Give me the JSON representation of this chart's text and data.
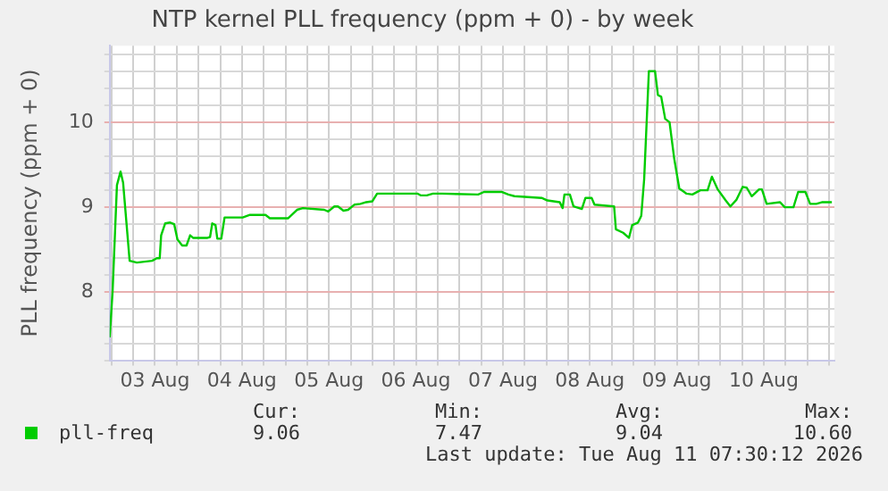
{
  "chart_data": {
    "type": "line",
    "title": "NTP kernel PLL frequency (ppm + 0) - by week",
    "ylabel": "PLL frequency (ppm + 0)",
    "x": [
      "2026-08-02T23:30",
      "2026-08-03T00:18",
      "2026-08-03T01:30",
      "2026-08-03T02:30",
      "2026-08-03T03:12",
      "2026-08-03T05:00",
      "2026-08-03T07:00",
      "2026-08-03T11:12",
      "2026-08-03T12:30",
      "2026-08-03T13:18",
      "2026-08-03T13:42",
      "2026-08-03T14:48",
      "2026-08-03T16:12",
      "2026-08-03T17:18",
      "2026-08-03T18:12",
      "2026-08-03T19:30",
      "2026-08-03T20:42",
      "2026-08-03T21:42",
      "2026-08-03T22:30",
      "2026-08-04T02:30",
      "2026-08-04T03:12",
      "2026-08-04T03:48",
      "2026-08-04T04:42",
      "2026-08-04T05:12",
      "2026-08-04T06:18",
      "2026-08-04T07:12",
      "2026-08-04T12:12",
      "2026-08-04T14:12",
      "2026-08-04T18:30",
      "2026-08-04T19:42",
      "2026-08-05T00:42",
      "2026-08-05T03:12",
      "2026-08-05T04:48",
      "2026-08-05T10:42",
      "2026-08-05T11:48",
      "2026-08-05T13:30",
      "2026-08-05T14:30",
      "2026-08-05T16:00",
      "2026-08-05T17:18",
      "2026-08-05T19:00",
      "2026-08-05T20:42",
      "2026-08-05T22:18",
      "2026-08-06T00:00",
      "2026-08-06T01:18",
      "2026-08-06T12:30",
      "2026-08-06T13:18",
      "2026-08-06T15:00",
      "2026-08-06T16:42",
      "2026-08-06T19:12",
      "2026-08-07T05:12",
      "2026-08-07T06:48",
      "2026-08-07T11:48",
      "2026-08-07T13:30",
      "2026-08-07T15:12",
      "2026-08-07T22:42",
      "2026-08-08T00:18",
      "2026-08-08T03:42",
      "2026-08-08T04:30",
      "2026-08-08T05:00",
      "2026-08-08T06:30",
      "2026-08-08T07:30",
      "2026-08-08T09:48",
      "2026-08-08T10:48",
      "2026-08-08T12:30",
      "2026-08-08T13:18",
      "2026-08-08T18:42",
      "2026-08-08T19:12",
      "2026-08-08T21:12",
      "2026-08-08T22:48",
      "2026-08-08T23:42",
      "2026-08-09T01:18",
      "2026-08-09T02:12",
      "2026-08-09T03:00",
      "2026-08-09T04:18",
      "2026-08-09T06:00",
      "2026-08-09T06:48",
      "2026-08-09T07:42",
      "2026-08-09T08:48",
      "2026-08-09T10:00",
      "2026-08-09T11:18",
      "2026-08-09T12:42",
      "2026-08-09T14:42",
      "2026-08-09T16:18",
      "2026-08-09T18:30",
      "2026-08-09T20:30",
      "2026-08-09T21:42",
      "2026-08-09T23:18",
      "2026-08-10T01:30",
      "2026-08-10T02:48",
      "2026-08-10T04:30",
      "2026-08-10T06:12",
      "2026-08-10T07:18",
      "2026-08-10T08:42",
      "2026-08-10T10:42",
      "2026-08-10T11:30",
      "2026-08-10T12:48",
      "2026-08-10T16:30",
      "2026-08-10T17:48",
      "2026-08-10T20:12",
      "2026-08-10T21:30",
      "2026-08-10T23:30",
      "2026-08-11T00:48",
      "2026-08-11T02:30",
      "2026-08-11T04:12",
      "2026-08-11T06:48"
    ],
    "series": [
      {
        "name": "pll-freq",
        "color": "#00cc00",
        "values": [
          7.47,
          8.01,
          9.26,
          9.42,
          9.29,
          8.37,
          8.35,
          8.37,
          8.4,
          8.4,
          8.67,
          8.81,
          8.82,
          8.8,
          8.62,
          8.55,
          8.55,
          8.67,
          8.64,
          8.64,
          8.65,
          8.81,
          8.79,
          8.63,
          8.63,
          8.88,
          8.88,
          8.91,
          8.91,
          8.87,
          8.87,
          8.97,
          8.99,
          8.97,
          8.95,
          9.01,
          9.01,
          8.96,
          8.97,
          9.03,
          9.04,
          9.06,
          9.07,
          9.16,
          9.16,
          9.14,
          9.14,
          9.16,
          9.16,
          9.15,
          9.18,
          9.18,
          9.15,
          9.13,
          9.11,
          9.08,
          9.06,
          8.99,
          9.15,
          9.15,
          9.01,
          8.98,
          9.11,
          9.11,
          9.03,
          9.01,
          8.74,
          8.7,
          8.64,
          8.79,
          8.82,
          8.9,
          9.33,
          10.6,
          10.6,
          10.32,
          10.3,
          10.04,
          10.0,
          9.57,
          9.22,
          9.16,
          9.15,
          9.2,
          9.2,
          9.36,
          9.21,
          9.08,
          9.01,
          9.09,
          9.24,
          9.23,
          9.13,
          9.21,
          9.21,
          9.04,
          9.06,
          9.0,
          9.0,
          9.18,
          9.18,
          9.04,
          9.04,
          9.06,
          9.06
        ]
      }
    ],
    "xlim": [
      "2026-08-02T23:30",
      "2026-08-11T07:30"
    ],
    "xticks": [
      {
        "value": "2026-08-03T00:00",
        "label": null
      },
      {
        "value": "2026-08-03T06:00",
        "label": null
      },
      {
        "value": "2026-08-03T12:00",
        "label": "03 Aug"
      },
      {
        "value": "2026-08-03T18:00",
        "label": null
      },
      {
        "value": "2026-08-04T00:00",
        "label": null
      },
      {
        "value": "2026-08-04T06:00",
        "label": null
      },
      {
        "value": "2026-08-04T12:00",
        "label": "04 Aug"
      },
      {
        "value": "2026-08-04T18:00",
        "label": null
      },
      {
        "value": "2026-08-05T00:00",
        "label": null
      },
      {
        "value": "2026-08-05T06:00",
        "label": null
      },
      {
        "value": "2026-08-05T12:00",
        "label": "05 Aug"
      },
      {
        "value": "2026-08-05T18:00",
        "label": null
      },
      {
        "value": "2026-08-06T00:00",
        "label": null
      },
      {
        "value": "2026-08-06T06:00",
        "label": null
      },
      {
        "value": "2026-08-06T12:00",
        "label": "06 Aug"
      },
      {
        "value": "2026-08-06T18:00",
        "label": null
      },
      {
        "value": "2026-08-07T00:00",
        "label": null
      },
      {
        "value": "2026-08-07T06:00",
        "label": null
      },
      {
        "value": "2026-08-07T12:00",
        "label": "07 Aug"
      },
      {
        "value": "2026-08-07T18:00",
        "label": null
      },
      {
        "value": "2026-08-08T00:00",
        "label": null
      },
      {
        "value": "2026-08-08T06:00",
        "label": null
      },
      {
        "value": "2026-08-08T12:00",
        "label": "08 Aug"
      },
      {
        "value": "2026-08-08T18:00",
        "label": null
      },
      {
        "value": "2026-08-09T00:00",
        "label": null
      },
      {
        "value": "2026-08-09T06:00",
        "label": null
      },
      {
        "value": "2026-08-09T12:00",
        "label": "09 Aug"
      },
      {
        "value": "2026-08-09T18:00",
        "label": null
      },
      {
        "value": "2026-08-10T00:00",
        "label": null
      },
      {
        "value": "2026-08-10T06:00",
        "label": null
      },
      {
        "value": "2026-08-10T12:00",
        "label": "10 Aug"
      },
      {
        "value": "2026-08-10T18:00",
        "label": null
      },
      {
        "value": "2026-08-11T00:00",
        "label": null
      },
      {
        "value": "2026-08-11T06:00",
        "label": null
      }
    ],
    "ylim": [
      7.2,
      10.9
    ],
    "yticks": [
      {
        "value": 7.2,
        "label": null
      },
      {
        "value": 7.4,
        "label": null
      },
      {
        "value": 7.6,
        "label": null
      },
      {
        "value": 7.8,
        "label": null
      },
      8,
      {
        "value": 8.2,
        "label": null
      },
      {
        "value": 8.4,
        "label": null
      },
      {
        "value": 8.6,
        "label": null
      },
      {
        "value": 8.8,
        "label": null
      },
      9,
      {
        "value": 9.2,
        "label": null
      },
      {
        "value": 9.4,
        "label": null
      },
      {
        "value": 9.6,
        "label": null
      },
      {
        "value": 9.8,
        "label": null
      },
      10,
      {
        "value": 10.2,
        "label": null
      },
      {
        "value": 10.4,
        "label": null
      },
      {
        "value": 10.6,
        "label": null
      },
      {
        "value": 10.8,
        "label": null
      }
    ],
    "grid": true,
    "legend": "bottom",
    "marker": "none",
    "line_style": "solid",
    "annotations": [
      "Cur:",
      "Min:",
      "Avg:",
      "Max:",
      "9.06",
      "7.47",
      "9.04",
      "10.60",
      "Last update: Tue Aug 11 07:30:12 2026"
    ]
  }
}
